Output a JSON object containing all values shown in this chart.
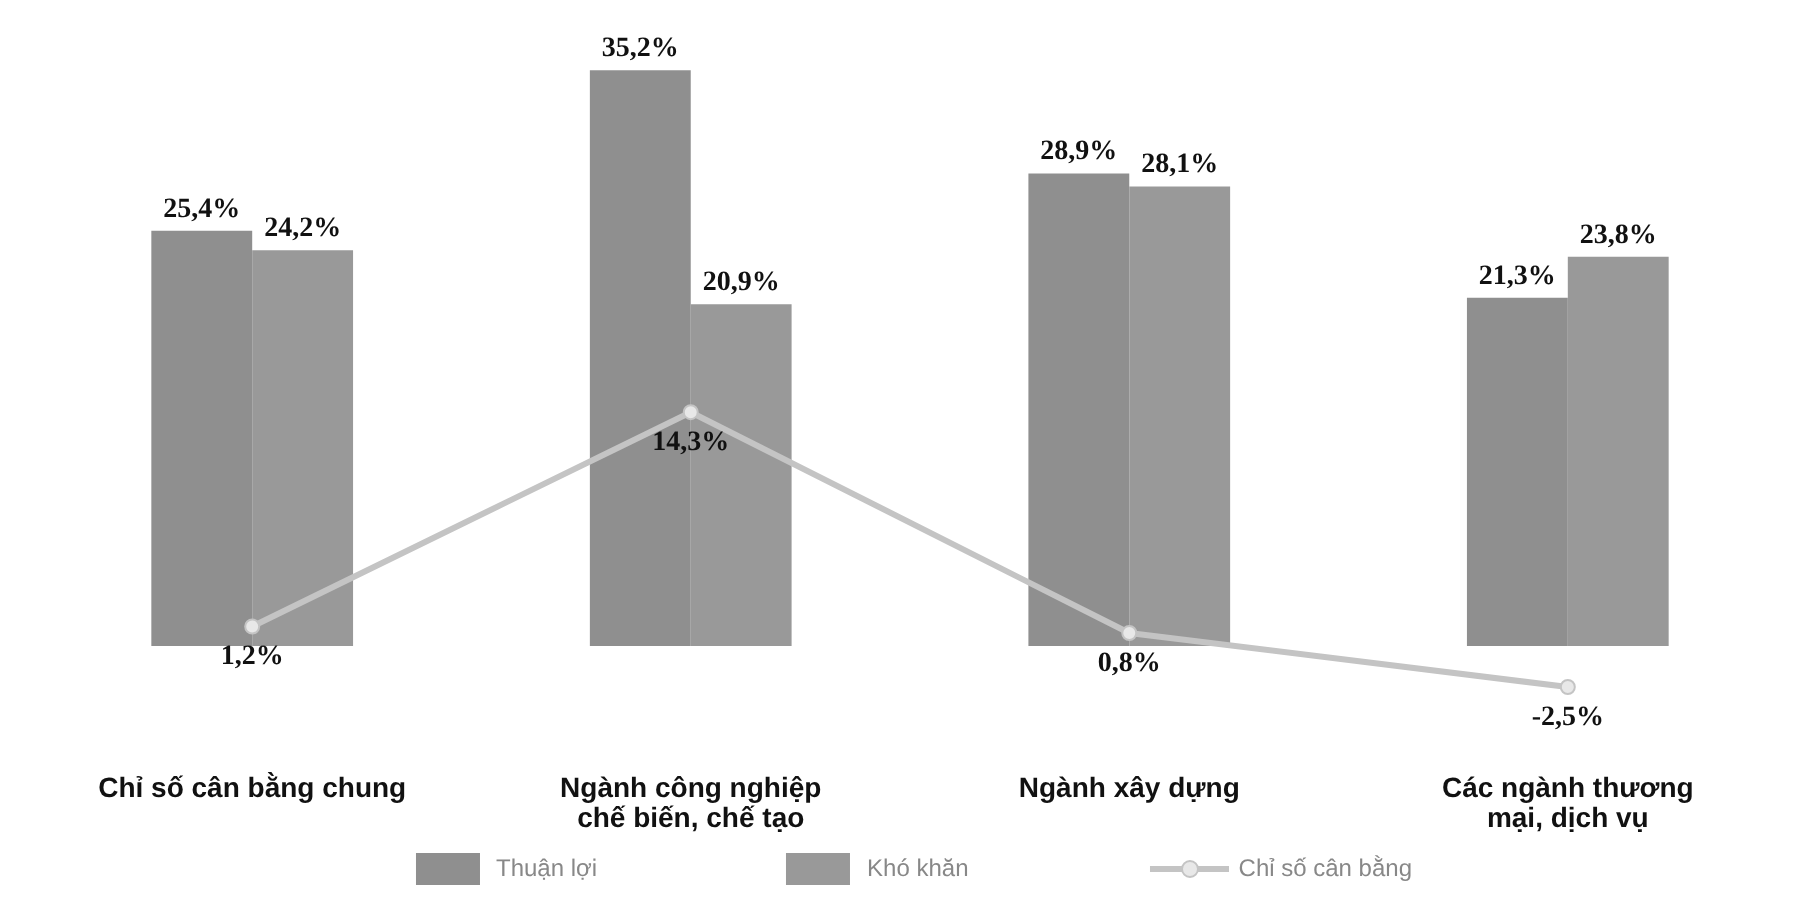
{
  "chart_data": {
    "type": "bar",
    "categories": [
      "Chỉ số cân bằng chung",
      "Ngành công nghiệp chế biến, chế tạo",
      "Ngành xây dựng",
      "Các ngành thương mại, dịch vụ"
    ],
    "series": [
      {
        "name": "Thuận lợi",
        "color": "#8f8f8f",
        "values": [
          25.4,
          35.2,
          28.9,
          21.3
        ],
        "value_labels": [
          "25,4%",
          "35,2%",
          "28,9%",
          "21,3%"
        ]
      },
      {
        "name": "Khó khăn",
        "color": "#999999",
        "values": [
          24.2,
          20.9,
          28.1,
          23.8
        ],
        "value_labels": [
          "24,2%",
          "20,9%",
          "28,1%",
          "23,8%"
        ]
      },
      {
        "name": "Chỉ số cân bằng",
        "type": "line",
        "color": "#c4c4c4",
        "values": [
          1.2,
          14.3,
          0.8,
          -2.5
        ],
        "value_labels": [
          "1,2%",
          "14,3%",
          "0,8%",
          "-2,5%"
        ]
      }
    ],
    "legend": "bottom",
    "grid": false,
    "marker": "circle",
    "line_style": "solid"
  }
}
